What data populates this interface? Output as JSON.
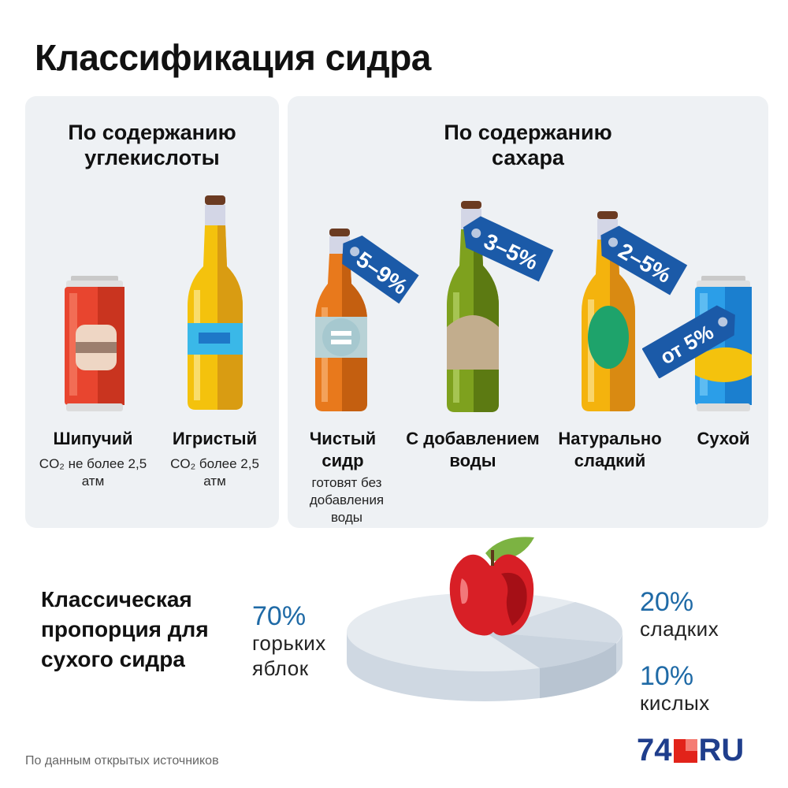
{
  "title": "Классификация сидра",
  "carbonation": {
    "heading": "По содержанию углекислоты",
    "items": [
      {
        "name": "Шипучий",
        "desc": "CO₂ не более 2,5 атм"
      },
      {
        "name": "Игристый",
        "desc": "CO₂ более 2,5 атм"
      }
    ]
  },
  "sugar": {
    "heading": "По содержанию сахара",
    "items": [
      {
        "name": "Чистый сидр",
        "desc": "готовят без добавления воды",
        "tag": "5–9%"
      },
      {
        "name": "С добавлением воды",
        "tag": "3–5%"
      },
      {
        "name": "Натурально сладкий",
        "tag": "2–5%"
      },
      {
        "name": "Сухой",
        "tag": "от 5%"
      }
    ]
  },
  "proportion": {
    "heading": "Классическая пропорция для сухого сидра",
    "slices": [
      {
        "pct": "70%",
        "label": "горьких яблок",
        "value": 70
      },
      {
        "pct": "20%",
        "label": "сладких",
        "value": 20
      },
      {
        "pct": "10%",
        "label": "кислых",
        "value": 10
      }
    ]
  },
  "source": "По данным открытых источников",
  "logo": {
    "num": "74",
    "ru": "RU"
  },
  "colors": {
    "accent": "#1f6aa6",
    "tag": "#1b5aa8",
    "panel": "#eef1f4"
  }
}
